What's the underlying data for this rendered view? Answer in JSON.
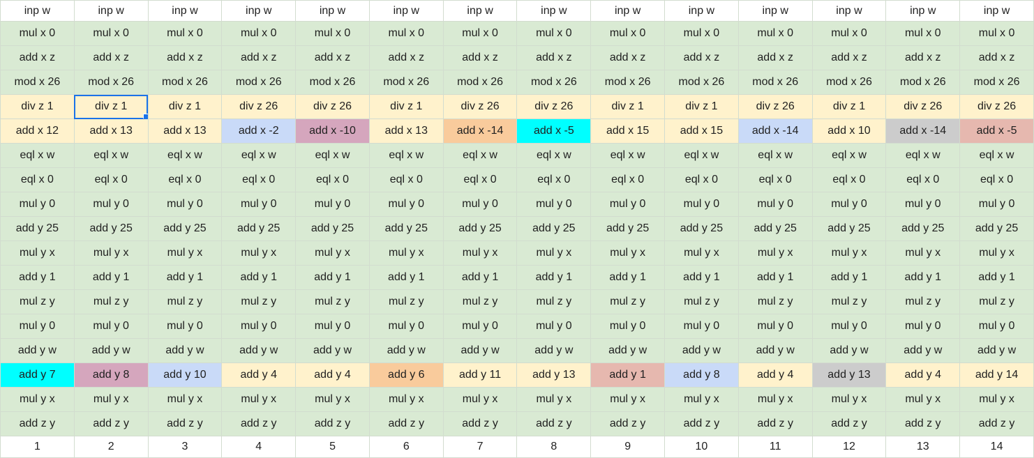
{
  "colors": {
    "white": "#ffffff",
    "green": "#d9ead3",
    "yellow": "#fff2cc",
    "blue": "#c9daf8",
    "purple": "#d5a6bd",
    "orange": "#f9cb9c",
    "cyan": "#00ffff",
    "gray": "#cccccc",
    "pink": "#e6b8af",
    "selection": "#1a73e8"
  },
  "selected_cell": {
    "row": 4,
    "col": 1
  },
  "rows": [
    {
      "cells": [
        "inp w",
        "inp w",
        "inp w",
        "inp w",
        "inp w",
        "inp w",
        "inp w",
        "inp w",
        "inp w",
        "inp w",
        "inp w",
        "inp w",
        "inp w",
        "inp w"
      ],
      "fills": [
        "white",
        "white",
        "white",
        "white",
        "white",
        "white",
        "white",
        "white",
        "white",
        "white",
        "white",
        "white",
        "white",
        "white"
      ]
    },
    {
      "cells": [
        "mul x 0",
        "mul x 0",
        "mul x 0",
        "mul x 0",
        "mul x 0",
        "mul x 0",
        "mul x 0",
        "mul x 0",
        "mul x 0",
        "mul x 0",
        "mul x 0",
        "mul x 0",
        "mul x 0",
        "mul x 0"
      ],
      "fills": [
        "green",
        "green",
        "green",
        "green",
        "green",
        "green",
        "green",
        "green",
        "green",
        "green",
        "green",
        "green",
        "green",
        "green"
      ]
    },
    {
      "cells": [
        "add x z",
        "add x z",
        "add x z",
        "add x z",
        "add x z",
        "add x z",
        "add x z",
        "add x z",
        "add x z",
        "add x z",
        "add x z",
        "add x z",
        "add x z",
        "add x z"
      ],
      "fills": [
        "green",
        "green",
        "green",
        "green",
        "green",
        "green",
        "green",
        "green",
        "green",
        "green",
        "green",
        "green",
        "green",
        "green"
      ]
    },
    {
      "cells": [
        "mod x 26",
        "mod x 26",
        "mod x 26",
        "mod x 26",
        "mod x 26",
        "mod x 26",
        "mod x 26",
        "mod x 26",
        "mod x 26",
        "mod x 26",
        "mod x 26",
        "mod x 26",
        "mod x 26",
        "mod x 26"
      ],
      "fills": [
        "green",
        "green",
        "green",
        "green",
        "green",
        "green",
        "green",
        "green",
        "green",
        "green",
        "green",
        "green",
        "green",
        "green"
      ]
    },
    {
      "cells": [
        "div z 1",
        "div z 1",
        "div z 1",
        "div z 26",
        "div z 26",
        "div z 1",
        "div z 26",
        "div z 26",
        "div z 1",
        "div z 1",
        "div z 26",
        "div z 1",
        "div z 26",
        "div z 26"
      ],
      "fills": [
        "yellow",
        "yellow",
        "yellow",
        "yellow",
        "yellow",
        "yellow",
        "yellow",
        "yellow",
        "yellow",
        "yellow",
        "yellow",
        "yellow",
        "yellow",
        "yellow"
      ]
    },
    {
      "cells": [
        "add x 12",
        "add x 13",
        "add x 13",
        "add x -2",
        "add x -10",
        "add x 13",
        "add x -14",
        "add x -5",
        "add x 15",
        "add x 15",
        "add x -14",
        "add x 10",
        "add x -14",
        "add x -5"
      ],
      "fills": [
        "yellow",
        "yellow",
        "yellow",
        "blue",
        "purple",
        "yellow",
        "orange",
        "cyan",
        "yellow",
        "yellow",
        "blue",
        "yellow",
        "gray",
        "pink"
      ]
    },
    {
      "cells": [
        "eql x w",
        "eql x w",
        "eql x w",
        "eql x w",
        "eql x w",
        "eql x w",
        "eql x w",
        "eql x w",
        "eql x w",
        "eql x w",
        "eql x w",
        "eql x w",
        "eql x w",
        "eql x w"
      ],
      "fills": [
        "green",
        "green",
        "green",
        "green",
        "green",
        "green",
        "green",
        "green",
        "green",
        "green",
        "green",
        "green",
        "green",
        "green"
      ]
    },
    {
      "cells": [
        "eql x 0",
        "eql x 0",
        "eql x 0",
        "eql x 0",
        "eql x 0",
        "eql x 0",
        "eql x 0",
        "eql x 0",
        "eql x 0",
        "eql x 0",
        "eql x 0",
        "eql x 0",
        "eql x 0",
        "eql x 0"
      ],
      "fills": [
        "green",
        "green",
        "green",
        "green",
        "green",
        "green",
        "green",
        "green",
        "green",
        "green",
        "green",
        "green",
        "green",
        "green"
      ]
    },
    {
      "cells": [
        "mul y 0",
        "mul y 0",
        "mul y 0",
        "mul y 0",
        "mul y 0",
        "mul y 0",
        "mul y 0",
        "mul y 0",
        "mul y 0",
        "mul y 0",
        "mul y 0",
        "mul y 0",
        "mul y 0",
        "mul y 0"
      ],
      "fills": [
        "green",
        "green",
        "green",
        "green",
        "green",
        "green",
        "green",
        "green",
        "green",
        "green",
        "green",
        "green",
        "green",
        "green"
      ]
    },
    {
      "cells": [
        "add y 25",
        "add y 25",
        "add y 25",
        "add y 25",
        "add y 25",
        "add y 25",
        "add y 25",
        "add y 25",
        "add y 25",
        "add y 25",
        "add y 25",
        "add y 25",
        "add y 25",
        "add y 25"
      ],
      "fills": [
        "green",
        "green",
        "green",
        "green",
        "green",
        "green",
        "green",
        "green",
        "green",
        "green",
        "green",
        "green",
        "green",
        "green"
      ]
    },
    {
      "cells": [
        "mul y x",
        "mul y x",
        "mul y x",
        "mul y x",
        "mul y x",
        "mul y x",
        "mul y x",
        "mul y x",
        "mul y x",
        "mul y x",
        "mul y x",
        "mul y x",
        "mul y x",
        "mul y x"
      ],
      "fills": [
        "green",
        "green",
        "green",
        "green",
        "green",
        "green",
        "green",
        "green",
        "green",
        "green",
        "green",
        "green",
        "green",
        "green"
      ]
    },
    {
      "cells": [
        "add y 1",
        "add y 1",
        "add y 1",
        "add y 1",
        "add y 1",
        "add y 1",
        "add y 1",
        "add y 1",
        "add y 1",
        "add y 1",
        "add y 1",
        "add y 1",
        "add y 1",
        "add y 1"
      ],
      "fills": [
        "green",
        "green",
        "green",
        "green",
        "green",
        "green",
        "green",
        "green",
        "green",
        "green",
        "green",
        "green",
        "green",
        "green"
      ]
    },
    {
      "cells": [
        "mul z y",
        "mul z y",
        "mul z y",
        "mul z y",
        "mul z y",
        "mul z y",
        "mul z y",
        "mul z y",
        "mul z y",
        "mul z y",
        "mul z y",
        "mul z y",
        "mul z y",
        "mul z y"
      ],
      "fills": [
        "green",
        "green",
        "green",
        "green",
        "green",
        "green",
        "green",
        "green",
        "green",
        "green",
        "green",
        "green",
        "green",
        "green"
      ]
    },
    {
      "cells": [
        "mul y 0",
        "mul y 0",
        "mul y 0",
        "mul y 0",
        "mul y 0",
        "mul y 0",
        "mul y 0",
        "mul y 0",
        "mul y 0",
        "mul y 0",
        "mul y 0",
        "mul y 0",
        "mul y 0",
        "mul y 0"
      ],
      "fills": [
        "green",
        "green",
        "green",
        "green",
        "green",
        "green",
        "green",
        "green",
        "green",
        "green",
        "green",
        "green",
        "green",
        "green"
      ]
    },
    {
      "cells": [
        "add y w",
        "add y w",
        "add y w",
        "add y w",
        "add y w",
        "add y w",
        "add y w",
        "add y w",
        "add y w",
        "add y w",
        "add y w",
        "add y w",
        "add y w",
        "add y w"
      ],
      "fills": [
        "green",
        "green",
        "green",
        "green",
        "green",
        "green",
        "green",
        "green",
        "green",
        "green",
        "green",
        "green",
        "green",
        "green"
      ]
    },
    {
      "cells": [
        "add y 7",
        "add y 8",
        "add y 10",
        "add y 4",
        "add y 4",
        "add y 6",
        "add y 11",
        "add y 13",
        "add y 1",
        "add y 8",
        "add y 4",
        "add y 13",
        "add y 4",
        "add y 14"
      ],
      "fills": [
        "cyan",
        "purple",
        "blue",
        "yellow",
        "yellow",
        "orange",
        "yellow",
        "yellow",
        "pink",
        "blue",
        "yellow",
        "gray",
        "yellow",
        "yellow"
      ]
    },
    {
      "cells": [
        "mul y x",
        "mul y x",
        "mul y x",
        "mul y x",
        "mul y x",
        "mul y x",
        "mul y x",
        "mul y x",
        "mul y x",
        "mul y x",
        "mul y x",
        "mul y x",
        "mul y x",
        "mul y x"
      ],
      "fills": [
        "green",
        "green",
        "green",
        "green",
        "green",
        "green",
        "green",
        "green",
        "green",
        "green",
        "green",
        "green",
        "green",
        "green"
      ]
    },
    {
      "cells": [
        "add z y",
        "add z y",
        "add z y",
        "add z y",
        "add z y",
        "add z y",
        "add z y",
        "add z y",
        "add z y",
        "add z y",
        "add z y",
        "add z y",
        "add z y",
        "add z y"
      ],
      "fills": [
        "green",
        "green",
        "green",
        "green",
        "green",
        "green",
        "green",
        "green",
        "green",
        "green",
        "green",
        "green",
        "green",
        "green"
      ]
    },
    {
      "cells": [
        "1",
        "2",
        "3",
        "4",
        "5",
        "6",
        "7",
        "8",
        "9",
        "10",
        "11",
        "12",
        "13",
        "14"
      ],
      "fills": [
        "white",
        "white",
        "white",
        "white",
        "white",
        "white",
        "white",
        "white",
        "white",
        "white",
        "white",
        "white",
        "white",
        "white"
      ]
    }
  ]
}
